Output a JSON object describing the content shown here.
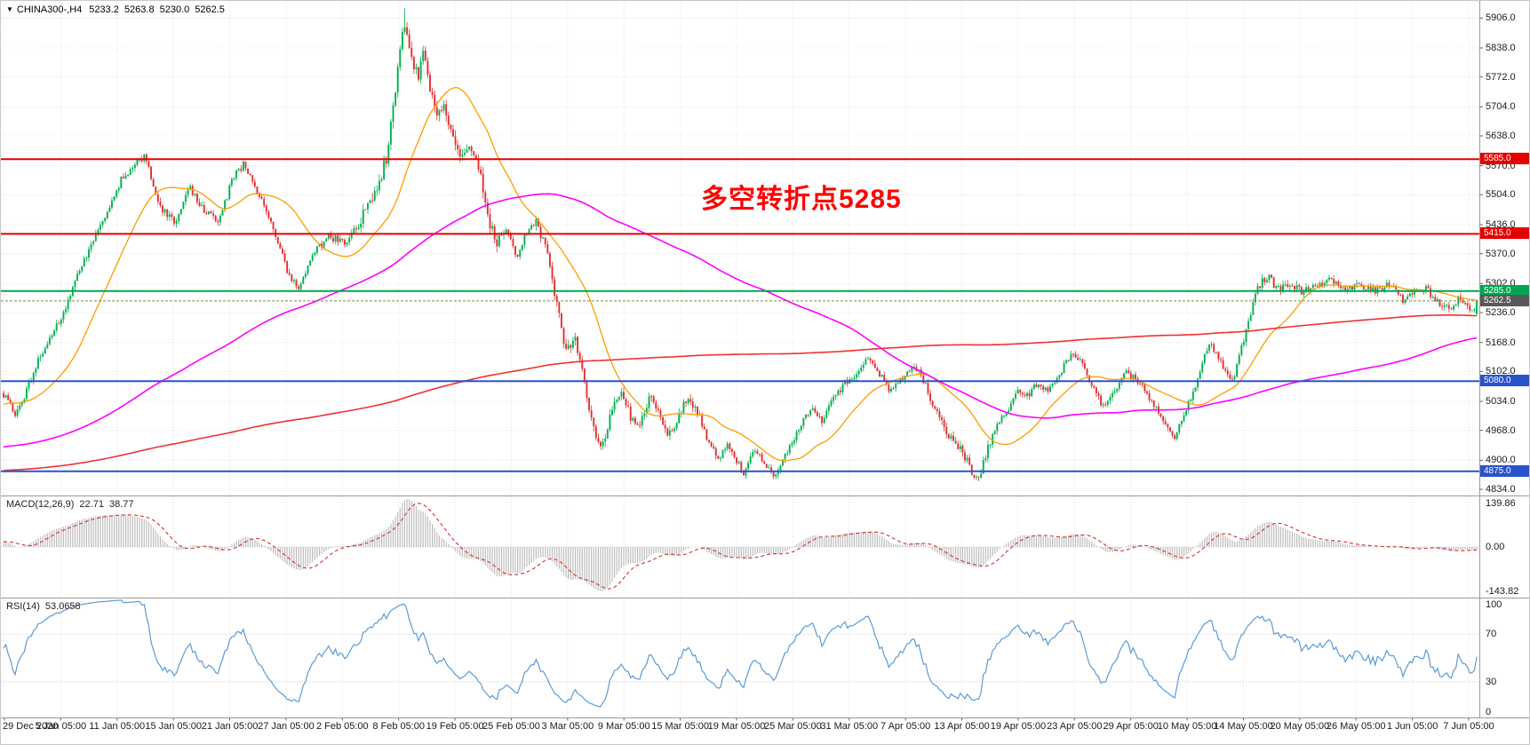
{
  "header": {
    "collapse_icon": "▼",
    "symbol": "CHINA300-,H4",
    "open": "5233.2",
    "high": "5263.8",
    "low": "5230.0",
    "close": "5262.5"
  },
  "annotation": {
    "text": "多空转折点5285",
    "color": "#ff0000"
  },
  "chart_data": {
    "type": "candlestick",
    "symbol": "CHINA300-",
    "timeframe": "H4",
    "last_ohlc": {
      "open": 5233.2,
      "high": 5263.8,
      "low": 5230.0,
      "close": 5262.5
    },
    "y_axis": {
      "min": 4820,
      "max": 5945,
      "ticks": [
        "5906.0",
        "5838.0",
        "5772.0",
        "5704.0",
        "5638.0",
        "5570.0",
        "5504.0",
        "5436.0",
        "5370.0",
        "5302.0",
        "5236.0",
        "5168.0",
        "5102.0",
        "5034.0",
        "4968.0",
        "4900.0",
        "4834.0"
      ]
    },
    "x_axis": {
      "ticks": [
        "29 Dec 2020",
        "5 Jan 05:00",
        "11 Jan 05:00",
        "15 Jan 05:00",
        "21 Jan 05:00",
        "27 Jan 05:00",
        "2 Feb 05:00",
        "8 Feb 05:00",
        "19 Feb 05:00",
        "25 Feb 05:00",
        "3 Mar 05:00",
        "9 Mar 05:00",
        "15 Mar 05:00",
        "19 Mar 05:00",
        "25 Mar 05:00",
        "31 Mar 05:00",
        "7 Apr 05:00",
        "13 Apr 05:00",
        "19 Apr 05:00",
        "23 Apr 05:00",
        "29 Apr 05:00",
        "10 May 05:00",
        "14 May 05:00",
        "20 May 05:00",
        "26 May 05:00",
        "1 Jun 05:00",
        "7 Jun 05:00"
      ]
    },
    "horizontal_lines": [
      {
        "value": 5585.0,
        "label": "5585.0",
        "color": "#e60000",
        "width": 2
      },
      {
        "value": 5415.0,
        "label": "5415.0",
        "color": "#e60000",
        "width": 2
      },
      {
        "value": 5285.0,
        "label": "5285.0",
        "color": "#00a651",
        "width": 2
      },
      {
        "value": 5080.0,
        "label": "5080.0",
        "color": "#2953cc",
        "width": 2
      },
      {
        "value": 4875.0,
        "label": "4875.0",
        "color": "#2953cc",
        "width": 2
      }
    ],
    "current_price": {
      "value": 5262.5,
      "label": "5262.5",
      "line_color": "#8a8a3c",
      "label_bg": "#595959"
    },
    "candles": {
      "count": 640,
      "up_color": "#00b050",
      "down_color": "#e03030",
      "seed": 7,
      "noise": 16,
      "wick": 9,
      "lead_waypoints": [
        [
          -1.0,
          4480
        ],
        [
          -0.9,
          4550
        ],
        [
          -0.8,
          4620
        ],
        [
          -0.7,
          4700
        ],
        [
          -0.6,
          4780
        ],
        [
          -0.5,
          4820
        ],
        [
          -0.4,
          4860
        ],
        [
          -0.3,
          4900
        ],
        [
          -0.2,
          4880
        ],
        [
          -0.12,
          4920
        ],
        [
          -0.06,
          4990
        ],
        [
          -0.02,
          5030
        ]
      ],
      "waypoints": [
        [
          0.0,
          5050
        ],
        [
          0.008,
          5005
        ],
        [
          0.016,
          5060
        ],
        [
          0.025,
          5140
        ],
        [
          0.04,
          5230
        ],
        [
          0.055,
          5360
        ],
        [
          0.068,
          5450
        ],
        [
          0.08,
          5540
        ],
        [
          0.09,
          5575
        ],
        [
          0.096,
          5595
        ],
        [
          0.105,
          5480
        ],
        [
          0.117,
          5440
        ],
        [
          0.126,
          5520
        ],
        [
          0.136,
          5470
        ],
        [
          0.146,
          5440
        ],
        [
          0.155,
          5540
        ],
        [
          0.163,
          5575
        ],
        [
          0.172,
          5510
        ],
        [
          0.182,
          5440
        ],
        [
          0.193,
          5320
        ],
        [
          0.2,
          5290
        ],
        [
          0.21,
          5370
        ],
        [
          0.22,
          5410
        ],
        [
          0.232,
          5395
        ],
        [
          0.242,
          5450
        ],
        [
          0.252,
          5510
        ],
        [
          0.26,
          5590
        ],
        [
          0.265,
          5730
        ],
        [
          0.269,
          5855
        ],
        [
          0.272,
          5890
        ],
        [
          0.276,
          5810
        ],
        [
          0.281,
          5775
        ],
        [
          0.285,
          5845
        ],
        [
          0.289,
          5750
        ],
        [
          0.294,
          5690
        ],
        [
          0.298,
          5715
        ],
        [
          0.304,
          5640
        ],
        [
          0.31,
          5595
        ],
        [
          0.316,
          5615
        ],
        [
          0.322,
          5575
        ],
        [
          0.328,
          5460
        ],
        [
          0.334,
          5390
        ],
        [
          0.341,
          5420
        ],
        [
          0.348,
          5360
        ],
        [
          0.354,
          5415
        ],
        [
          0.361,
          5445
        ],
        [
          0.368,
          5375
        ],
        [
          0.374,
          5270
        ],
        [
          0.381,
          5150
        ],
        [
          0.387,
          5180
        ],
        [
          0.393,
          5090
        ],
        [
          0.399,
          4975
        ],
        [
          0.405,
          4925
        ],
        [
          0.411,
          5000
        ],
        [
          0.418,
          5060
        ],
        [
          0.425,
          5000
        ],
        [
          0.431,
          4975
        ],
        [
          0.438,
          5045
        ],
        [
          0.445,
          5000
        ],
        [
          0.451,
          4955
        ],
        [
          0.458,
          5000
        ],
        [
          0.463,
          5040
        ],
        [
          0.471,
          5005
        ],
        [
          0.478,
          4940
        ],
        [
          0.485,
          4898
        ],
        [
          0.491,
          4940
        ],
        [
          0.497,
          4898
        ],
        [
          0.502,
          4870
        ],
        [
          0.509,
          4930
        ],
        [
          0.516,
          4895
        ],
        [
          0.523,
          4862
        ],
        [
          0.531,
          4920
        ],
        [
          0.54,
          4980
        ],
        [
          0.547,
          5020
        ],
        [
          0.554,
          4988
        ],
        [
          0.561,
          5030
        ],
        [
          0.571,
          5080
        ],
        [
          0.579,
          5100
        ],
        [
          0.586,
          5140
        ],
        [
          0.593,
          5098
        ],
        [
          0.601,
          5058
        ],
        [
          0.609,
          5088
        ],
        [
          0.617,
          5118
        ],
        [
          0.624,
          5078
        ],
        [
          0.631,
          5018
        ],
        [
          0.638,
          4968
        ],
        [
          0.646,
          4938
        ],
        [
          0.653,
          4898
        ],
        [
          0.657,
          4868
        ],
        [
          0.661,
          4858
        ],
        [
          0.666,
          4920
        ],
        [
          0.673,
          4978
        ],
        [
          0.681,
          5020
        ],
        [
          0.688,
          5058
        ],
        [
          0.694,
          5048
        ],
        [
          0.701,
          5078
        ],
        [
          0.708,
          5058
        ],
        [
          0.716,
          5098
        ],
        [
          0.725,
          5148
        ],
        [
          0.732,
          5118
        ],
        [
          0.739,
          5058
        ],
        [
          0.746,
          5018
        ],
        [
          0.753,
          5058
        ],
        [
          0.761,
          5098
        ],
        [
          0.771,
          5078
        ],
        [
          0.779,
          5028
        ],
        [
          0.786,
          4988
        ],
        [
          0.793,
          4948
        ],
        [
          0.801,
          5008
        ],
        [
          0.809,
          5080
        ],
        [
          0.817,
          5170
        ],
        [
          0.825,
          5120
        ],
        [
          0.833,
          5080
        ],
        [
          0.841,
          5180
        ],
        [
          0.849,
          5290
        ],
        [
          0.857,
          5320
        ],
        [
          0.863,
          5290
        ],
        [
          0.87,
          5305
        ],
        [
          0.88,
          5285
        ],
        [
          0.89,
          5300
        ],
        [
          0.9,
          5310
        ],
        [
          0.91,
          5290
        ],
        [
          0.92,
          5300
        ],
        [
          0.93,
          5285
        ],
        [
          0.94,
          5300
        ],
        [
          0.948,
          5265
        ],
        [
          0.956,
          5285
        ],
        [
          0.964,
          5290
        ],
        [
          0.972,
          5260
        ],
        [
          0.98,
          5242
        ],
        [
          0.987,
          5272
        ],
        [
          0.994,
          5235
        ],
        [
          1.0,
          5262
        ]
      ],
      "vol_zones": [
        {
          "from": 0.24,
          "to": 0.34,
          "mult": 1.8
        },
        {
          "from": 0.36,
          "to": 0.47,
          "mult": 1.4
        },
        {
          "from": 0.63,
          "to": 0.67,
          "mult": 1.3
        },
        {
          "from": 0.84,
          "to": 0.88,
          "mult": 1.2
        }
      ]
    },
    "moving_averages": [
      {
        "name": "fast",
        "period": 30,
        "color": "#ff9c00",
        "width": 1.3
      },
      {
        "name": "medium",
        "period": 200,
        "color": "#ff00ff",
        "width": 1.6
      },
      {
        "name": "slow",
        "period": 600,
        "color": "#f03030",
        "width": 1.6
      }
    ],
    "indicators": [
      {
        "name": "MACD",
        "label": "MACD(12,26,9)",
        "values_text": [
          "22.71",
          "38.77"
        ],
        "params": {
          "fast": 12,
          "slow": 26,
          "signal": 9
        },
        "scale_ticks": [
          "139.86",
          "0.00",
          "-143.82"
        ],
        "histogram_color": "#bdbdbd",
        "signal_color": "#d43030"
      },
      {
        "name": "RSI",
        "label": "RSI(14)",
        "value_text": "53.0658",
        "period": 14,
        "levels": [
          70,
          30
        ],
        "scale_ticks": [
          "100",
          "70",
          "30",
          "0"
        ],
        "line_color": "#5b9bd5"
      }
    ]
  }
}
